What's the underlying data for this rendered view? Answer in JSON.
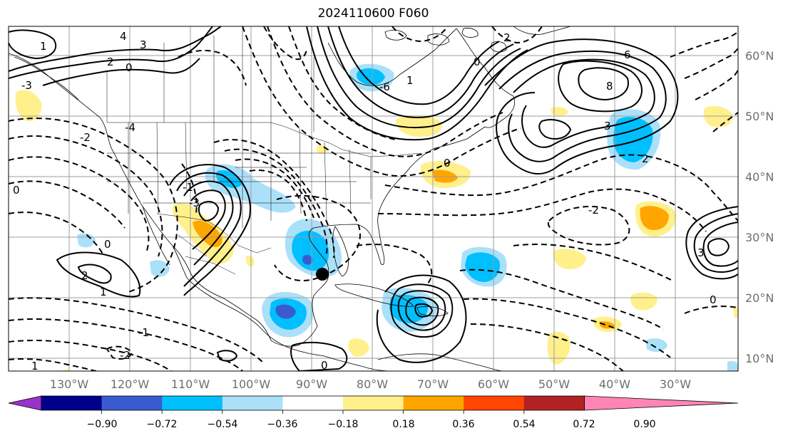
{
  "title": "2024110600 F060",
  "map": {
    "lon_labels": [
      "130°W",
      "120°W",
      "110°W",
      "100°W",
      "90°W",
      "80°W",
      "70°W",
      "60°W",
      "50°W",
      "40°W",
      "30°W"
    ],
    "lat_labels": [
      "60°N",
      "50°N",
      "40°N",
      "30°N",
      "20°N",
      "10°N"
    ],
    "contour_labels": [
      "4",
      "3",
      "2",
      "1",
      "0",
      "-1",
      "-2",
      "-3",
      "-4",
      "-6",
      "6",
      "8",
      "1",
      "2",
      "0",
      "2",
      "3",
      "-2",
      "2",
      "0",
      "1",
      "0",
      "0",
      "-1",
      "-2",
      "1",
      "0",
      "-3",
      "3",
      "0"
    ]
  },
  "colorbar": {
    "ticks": [
      "−0.90",
      "−0.72",
      "−0.54",
      "−0.36",
      "−0.18",
      "0.18",
      "0.36",
      "0.54",
      "0.72",
      "0.90"
    ],
    "colors": [
      "#9932cc",
      "#00008b",
      "#3a5bd0",
      "#00bfff",
      "#abe0f9",
      "#ffffff",
      "#fff08c",
      "#ffa500",
      "#ff4500",
      "#b22222",
      "#ff85b4"
    ],
    "extend": "both"
  },
  "marker": {
    "type": "filled-circle",
    "color": "#000000"
  }
}
